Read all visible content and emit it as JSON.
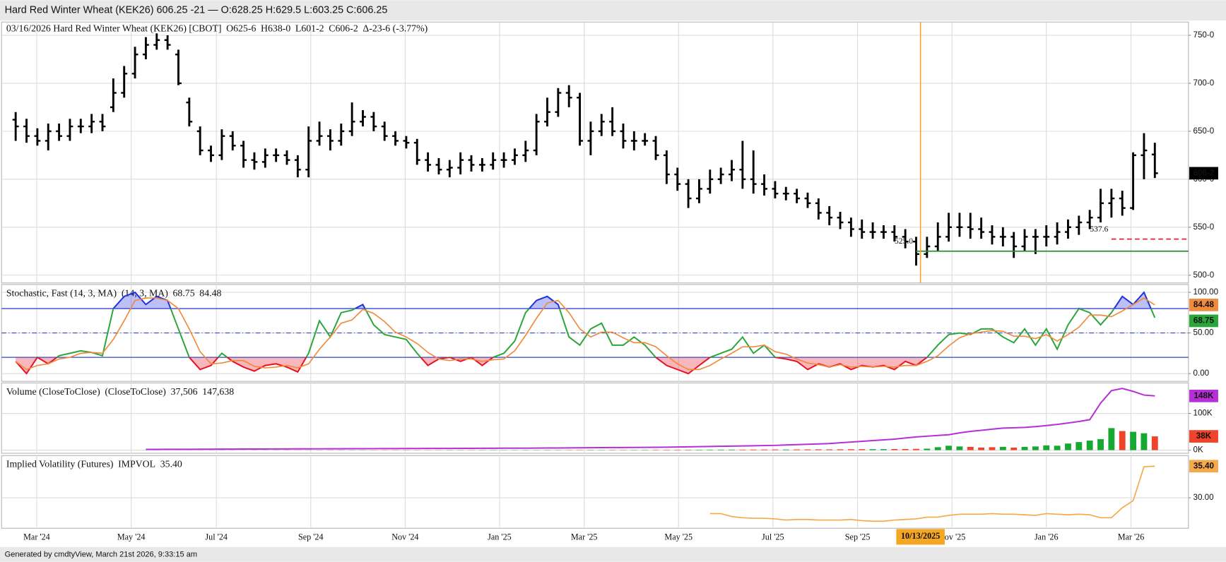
{
  "header": "Hard Red Winter Wheat (KEK26) 606.25 -21 — O:628.25 H:629.5 L:603.25 C:606.25",
  "footer": "Generated by cmdtyView, March 21st 2026, 9:33:15 am",
  "x_axis": {
    "xlim": [
      -1.3,
      108.1
    ],
    "xticks": [
      {
        "value": 1.94,
        "label": "Mar '24"
      },
      {
        "value": 10.65,
        "label": "May '24"
      },
      {
        "value": 18.5,
        "label": "Jul '24"
      },
      {
        "value": 27.2,
        "label": "Sep '24"
      },
      {
        "value": 35.9,
        "label": "Nov '24"
      },
      {
        "value": 44.6,
        "label": "Jan '25"
      },
      {
        "value": 52.4,
        "label": "Mar '25"
      },
      {
        "value": 61.1,
        "label": "May '25"
      },
      {
        "value": 69.8,
        "label": "Jul '25"
      },
      {
        "value": 77.6,
        "label": "Sep '25"
      },
      {
        "value": 86.3,
        "label": "Nov '25"
      },
      {
        "value": 95.0,
        "label": "Jan '26"
      },
      {
        "value": 102.8,
        "label": "Mar '26"
      }
    ],
    "marker": {
      "value": 83.4,
      "label": "10/13/2025",
      "color": "#f5a623"
    }
  },
  "chart_data": [
    {
      "type": "ohlc",
      "title": "03/16/2026 Hard Red Winter Wheat (KEK26) [CBOT]",
      "legend_items": [
        "O625-6",
        "H638-0",
        "L601-2",
        "C606-2",
        "Δ-23-6 (-3.77%)"
      ],
      "color": "#000000",
      "open": [
        662,
        655,
        645,
        640,
        650,
        645,
        655,
        655,
        660,
        675,
        690,
        710,
        730,
        740,
        745,
        730,
        680,
        650,
        630,
        625,
        645,
        635,
        620,
        618,
        625,
        625,
        620,
        610,
        640,
        645,
        640,
        650,
        660,
        665,
        655,
        645,
        640,
        638,
        620,
        615,
        610,
        612,
        620,
        615,
        615,
        620,
        620,
        625,
        630,
        660,
        670,
        690,
        685,
        640,
        650,
        660,
        650,
        640,
        640,
        640,
        625,
        605,
        595,
        580,
        590,
        600,
        605,
        610,
        600,
        595,
        590,
        585,
        585,
        580,
        575,
        565,
        560,
        555,
        548,
        545,
        545,
        545,
        540,
        535,
        522,
        530,
        540,
        550,
        550,
        548,
        545,
        540,
        540,
        530,
        540,
        540,
        540,
        545,
        550,
        555,
        560,
        575,
        580,
        570,
        625,
        625.75
      ],
      "high": [
        670,
        663,
        653,
        658,
        658,
        663,
        663,
        668,
        668,
        705,
        718,
        738,
        748,
        752,
        750,
        735,
        685,
        655,
        635,
        652,
        650,
        640,
        628,
        632,
        632,
        630,
        625,
        655,
        660,
        652,
        658,
        680,
        672,
        670,
        660,
        650,
        645,
        642,
        628,
        622,
        620,
        628,
        625,
        622,
        628,
        628,
        632,
        640,
        668,
        685,
        695,
        698,
        690,
        660,
        668,
        675,
        658,
        650,
        648,
        645,
        630,
        612,
        600,
        600,
        610,
        612,
        620,
        640,
        630,
        605,
        598,
        592,
        590,
        586,
        580,
        572,
        566,
        560,
        558,
        555,
        552,
        552,
        548,
        540,
        540,
        555,
        565,
        565,
        565,
        560,
        552,
        550,
        545,
        548,
        548,
        552,
        555,
        558,
        562,
        568,
        590,
        590,
        588,
        628,
        648,
        638
      ],
      "low": [
        640,
        638,
        635,
        630,
        640,
        640,
        648,
        648,
        650,
        670,
        685,
        705,
        725,
        735,
        735,
        698,
        655,
        625,
        618,
        620,
        630,
        612,
        610,
        612,
        618,
        615,
        602,
        602,
        635,
        630,
        635,
        645,
        655,
        650,
        640,
        635,
        632,
        615,
        608,
        605,
        602,
        605,
        608,
        608,
        610,
        612,
        615,
        618,
        625,
        655,
        665,
        675,
        635,
        625,
        645,
        645,
        632,
        630,
        635,
        620,
        595,
        588,
        570,
        575,
        585,
        595,
        598,
        590,
        585,
        583,
        580,
        578,
        575,
        570,
        558,
        552,
        548,
        540,
        538,
        538,
        538,
        535,
        528,
        510,
        518,
        525,
        535,
        540,
        538,
        538,
        532,
        530,
        518,
        525,
        522,
        530,
        532,
        538,
        542,
        548,
        555,
        560,
        562,
        568,
        600,
        601.25
      ],
      "close": [
        655,
        645,
        640,
        650,
        645,
        655,
        655,
        660,
        655,
        690,
        710,
        730,
        740,
        745,
        740,
        700,
        660,
        630,
        625,
        645,
        635,
        620,
        618,
        625,
        625,
        620,
        610,
        640,
        645,
        640,
        650,
        660,
        665,
        655,
        645,
        640,
        638,
        620,
        615,
        610,
        612,
        620,
        615,
        615,
        620,
        620,
        625,
        630,
        660,
        670,
        690,
        685,
        640,
        650,
        660,
        650,
        640,
        640,
        640,
        625,
        605,
        595,
        580,
        590,
        600,
        605,
        610,
        600,
        595,
        590,
        585,
        585,
        580,
        575,
        565,
        560,
        555,
        548,
        545,
        545,
        545,
        540,
        535,
        522,
        530,
        540,
        550,
        550,
        548,
        545,
        540,
        540,
        530,
        540,
        540,
        540,
        545,
        550,
        555,
        560,
        575,
        580,
        570,
        625,
        630,
        606.25
      ],
      "ylim": [
        491.9,
        763.8
      ],
      "yticks": [
        {
          "value": 500,
          "label": "500-0"
        },
        {
          "value": 550,
          "label": "550-0"
        },
        {
          "value": 600,
          "label": "600-0"
        },
        {
          "value": 650,
          "label": "650-0"
        },
        {
          "value": 700,
          "label": "700-0"
        },
        {
          "value": 750,
          "label": "750-0"
        }
      ],
      "hlines": [
        {
          "x": 83,
          "value": 525,
          "label": "525.0",
          "color": "#2e8b2e",
          "dashed": false
        },
        {
          "x": 101,
          "value": 537.6,
          "label": "537.6",
          "color": "#e0203a",
          "dashed": true
        }
      ],
      "badge": {
        "value": 606.25,
        "label": "606-2",
        "color": "#000000"
      }
    },
    {
      "type": "stochastic",
      "title": "Stochastic, Fast (14, 3, MA)",
      "subtitle": "(14, 3, MA)",
      "series": [
        {
          "color": "#2aa63a",
          "values": [
            15,
            0,
            20,
            12,
            22,
            25,
            28,
            26,
            22,
            80,
            95,
            100,
            85,
            95,
            90,
            55,
            20,
            5,
            10,
            25,
            15,
            8,
            3,
            10,
            12,
            8,
            2,
            25,
            65,
            45,
            75,
            78,
            85,
            60,
            48,
            45,
            42,
            25,
            10,
            18,
            20,
            15,
            20,
            10,
            20,
            25,
            40,
            75,
            90,
            95,
            85,
            45,
            35,
            55,
            62,
            35,
            35,
            45,
            35,
            20,
            10,
            5,
            0,
            10,
            20,
            25,
            30,
            45,
            25,
            35,
            20,
            18,
            15,
            5,
            12,
            8,
            12,
            5,
            10,
            8,
            10,
            5,
            15,
            10,
            20,
            35,
            48,
            50,
            48,
            55,
            55,
            45,
            38,
            55,
            35,
            55,
            30,
            60,
            80,
            75,
            60,
            75,
            95,
            85,
            100,
            68.75
          ]
        },
        {
          "color": "#f08a3c",
          "values": [
            15,
            5,
            10,
            12,
            18,
            20,
            25,
            26,
            25,
            42,
            65,
            90,
            93,
            93,
            90,
            80,
            55,
            27,
            12,
            13,
            16,
            16,
            9,
            7,
            8,
            10,
            7,
            12,
            30,
            45,
            62,
            66,
            79,
            74,
            64,
            51,
            45,
            37,
            26,
            18,
            16,
            18,
            18,
            15,
            17,
            18,
            28,
            47,
            68,
            87,
            90,
            75,
            55,
            45,
            51,
            51,
            44,
            38,
            38,
            33,
            22,
            12,
            5,
            5,
            10,
            18,
            25,
            33,
            33,
            35,
            27,
            24,
            18,
            13,
            11,
            8,
            11,
            8,
            9,
            8,
            9,
            8,
            10,
            10,
            15,
            22,
            34,
            44,
            49,
            51,
            53,
            52,
            46,
            46,
            43,
            48,
            40,
            48,
            57,
            72,
            72,
            70,
            77,
            85,
            93,
            84.48
          ]
        }
      ],
      "upper_band": 80,
      "lower_band": 20,
      "mid_line": 50,
      "upper_color": "#2030e0",
      "lower_color": "#e81020",
      "band_line_color": "#3548c8",
      "ylim": [
        -9.6,
        109.6
      ],
      "yticks": [
        {
          "value": 0,
          "label": "0.00"
        },
        {
          "value": 50,
          "label": "50.00"
        },
        {
          "value": 100,
          "label": "100.00"
        }
      ]
    },
    {
      "type": "volume",
      "title": "Volume (CloseToClose)",
      "subtitle": "(CloseToClose)",
      "up_color": "#17a832",
      "down_color": "#f0442a",
      "series": [
        {
          "color": "#f0442a",
          "values": [
            null,
            null,
            null,
            null,
            null,
            null,
            null,
            null,
            null,
            null,
            null,
            null,
            200,
            250,
            300,
            250,
            300,
            350,
            300,
            400,
            350,
            300,
            400,
            350,
            400,
            450,
            400,
            350,
            400,
            450,
            500,
            450,
            400,
            500,
            450,
            500,
            550,
            500,
            450,
            500,
            550,
            600,
            550,
            500,
            600,
            550,
            600,
            650,
            600,
            700,
            650,
            600,
            700,
            750,
            700,
            800,
            750,
            800,
            850,
            900,
            1000,
            1100,
            1200,
            1100,
            1300,
            1400,
            1500,
            1400,
            1600,
            1700,
            1800,
            1700,
            1900,
            2000,
            2200,
            2100,
            2300,
            2500,
            2700,
            2600,
            2800,
            3000,
            3200,
            3500,
            4000,
            8000,
            12000,
            10000,
            9000,
            7000,
            8000,
            9000,
            7000,
            9000,
            10000,
            13000,
            12000,
            18000,
            22000,
            26000,
            30000,
            60000,
            52000,
            50000,
            46000,
            37506
          ],
          "last_label": {
            "value": 37506,
            "label": "37,506"
          },
          "badge": {
            "value": 37506,
            "label": "38K"
          }
        },
        {
          "color": "#b62fd6",
          "values": [
            null,
            null,
            null,
            null,
            null,
            null,
            null,
            null,
            null,
            null,
            null,
            null,
            2000,
            2100,
            2200,
            2300,
            2400,
            2500,
            2600,
            2700,
            2800,
            2900,
            3000,
            3100,
            3200,
            3300,
            3400,
            3500,
            3600,
            3700,
            3800,
            3900,
            4000,
            4100,
            4200,
            4300,
            4400,
            4500,
            4600,
            4700,
            4800,
            4900,
            5000,
            5100,
            5200,
            5300,
            5400,
            5500,
            5600,
            5800,
            6000,
            6200,
            6400,
            6600,
            6800,
            7000,
            7200,
            7400,
            7600,
            7800,
            8000,
            8500,
            9000,
            9500,
            10000,
            10500,
            11000,
            11500,
            12000,
            12500,
            13000,
            14000,
            15000,
            16000,
            17000,
            18000,
            20000,
            22000,
            24000,
            26000,
            28000,
            30000,
            33000,
            36000,
            38000,
            40000,
            42000,
            47000,
            51000,
            54000,
            57000,
            60000,
            61000,
            62000,
            64000,
            67000,
            70000,
            74000,
            78000,
            83000,
            128000,
            162000,
            168000,
            160000,
            150000,
            147638
          ],
          "last_label": {
            "value": 147638,
            "label": "147,638"
          },
          "badge": {
            "value": 147638,
            "label": "148K"
          }
        }
      ],
      "ylim": [
        -8500,
        183000
      ],
      "yticks": [
        {
          "value": 0,
          "label": "0K"
        },
        {
          "value": 100000,
          "label": "100K"
        }
      ]
    },
    {
      "type": "line",
      "title": "Implied Volatility (Futures)",
      "subtitle": "IMPVOL",
      "series": [
        {
          "color": "#f5a94a",
          "values": [
            null,
            null,
            null,
            null,
            null,
            null,
            null,
            null,
            null,
            null,
            null,
            null,
            null,
            null,
            null,
            null,
            null,
            null,
            null,
            null,
            null,
            null,
            null,
            null,
            null,
            null,
            null,
            null,
            null,
            null,
            null,
            null,
            null,
            null,
            null,
            null,
            null,
            null,
            null,
            null,
            null,
            null,
            null,
            null,
            null,
            null,
            null,
            null,
            null,
            null,
            null,
            null,
            null,
            null,
            null,
            null,
            null,
            null,
            null,
            null,
            null,
            null,
            null,
            null,
            27.3,
            27.3,
            26.8,
            26.6,
            26.5,
            26.5,
            26.4,
            26.2,
            26.3,
            26.3,
            26.2,
            26.2,
            26.2,
            26.3,
            26.1,
            26.0,
            26.0,
            26.2,
            26.3,
            26.4,
            26.7,
            26.7,
            27.0,
            27.2,
            27.2,
            27.2,
            27.3,
            27.2,
            27.2,
            27.1,
            27.0,
            27.3,
            27.2,
            27.1,
            27.2,
            27.1,
            26.6,
            26.6,
            28.3,
            29.5,
            35.3,
            35.4
          ],
          "last_label": {
            "value": 35.4,
            "label": "35.40"
          },
          "badge": {
            "value": 35.4,
            "label": "35.40"
          }
        }
      ],
      "ylim": [
        24.8,
        37.2
      ],
      "yticks": [
        {
          "value": 30,
          "label": "30.00"
        }
      ]
    }
  ]
}
